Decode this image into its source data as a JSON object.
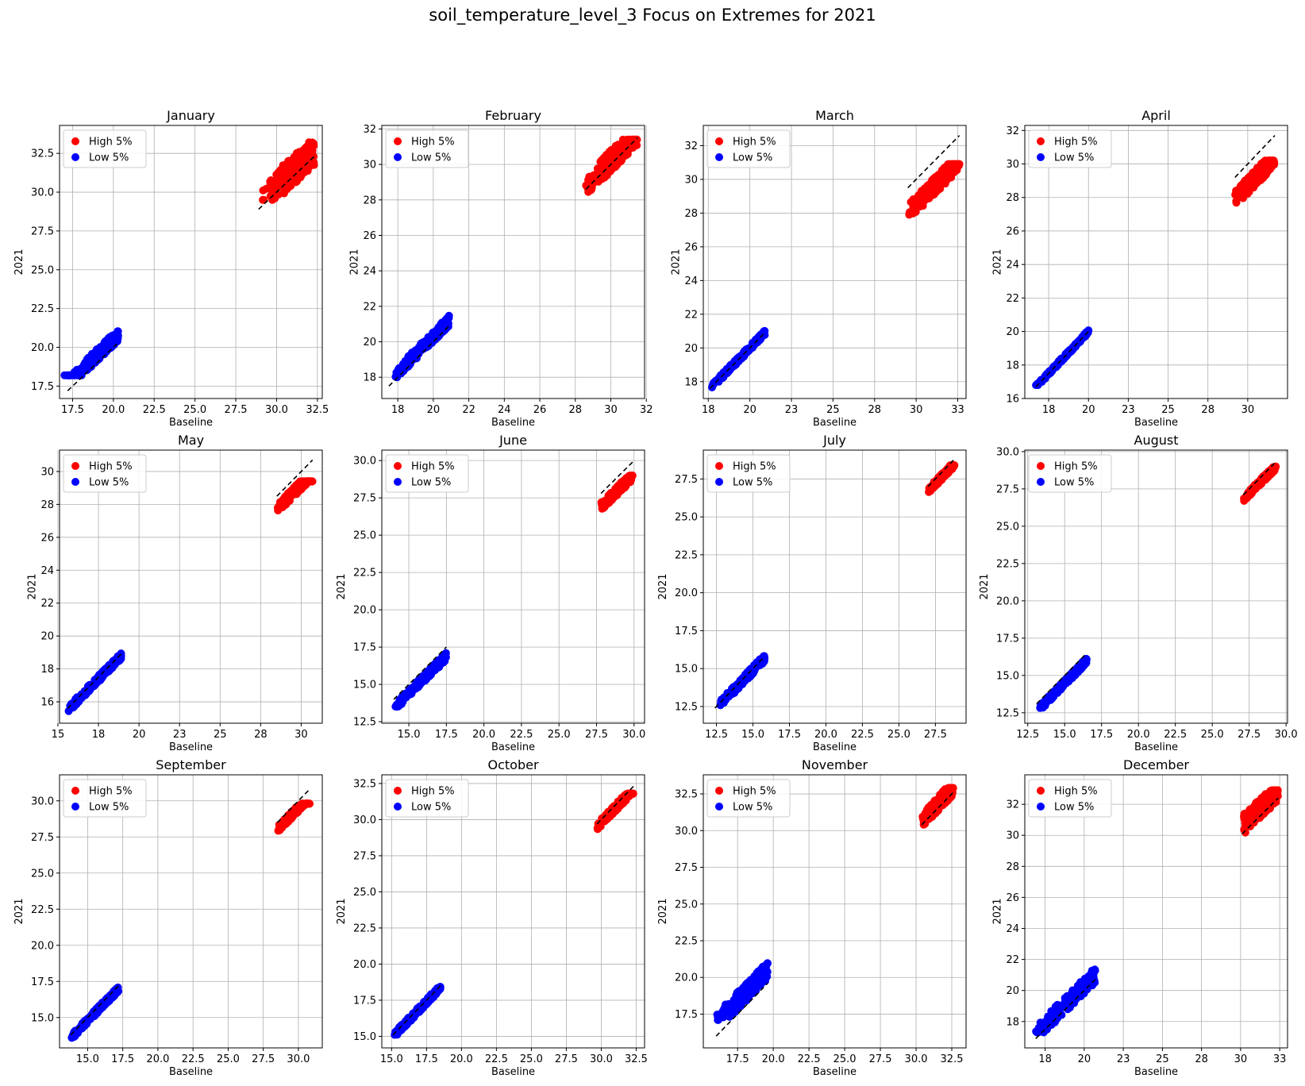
{
  "figure_title": "soil_temperature_level_3 Focus on Extremes for 2021",
  "colors": {
    "high": "#ff0000",
    "low": "#0000ff",
    "identity": "#000000",
    "grid": "#b0b0b0"
  },
  "chart_data": [
    {
      "type": "scatter",
      "title": "January",
      "xlabel": "Baseline",
      "ylabel": "2021",
      "xlim": [
        16.7,
        32.8
      ],
      "ylim": [
        16.7,
        34.3
      ],
      "xticks": [
        17.5,
        20.0,
        22.5,
        25.0,
        27.5,
        30.0,
        32.5
      ],
      "yticks": [
        17.5,
        20.0,
        22.5,
        25.0,
        27.5,
        30.0,
        32.5
      ],
      "decimals": 1,
      "legend": [
        "High 5%",
        "Low 5%"
      ],
      "series": [
        {
          "name": "High 5%",
          "x_range": [
            29.0,
            32.3
          ],
          "y_range": [
            29.5,
            33.6
          ],
          "offset": 0.4,
          "spread": 1.9
        },
        {
          "name": "Low 5%",
          "x_range": [
            17.0,
            20.3
          ],
          "y_range": [
            18.2,
            22.2
          ],
          "offset": 0.5,
          "spread": 0.8
        }
      ],
      "diagonal_segments": [
        [
          17.2,
          20.3
        ],
        [
          28.9,
          32.4
        ]
      ]
    },
    {
      "type": "scatter",
      "title": "February",
      "xlabel": "Baseline",
      "ylabel": "2021",
      "xlim": [
        17.1,
        31.9
      ],
      "ylim": [
        16.8,
        32.2
      ],
      "xticks": [
        18,
        20,
        22,
        24,
        26,
        28,
        30,
        32
      ],
      "yticks": [
        18,
        20,
        22,
        24,
        26,
        28,
        30,
        32
      ],
      "decimals": 0,
      "legend": [
        "High 5%",
        "Low 5%"
      ],
      "series": [
        {
          "name": "High 5%",
          "x_range": [
            28.6,
            31.5
          ],
          "y_range": [
            28.2,
            31.4
          ],
          "offset": 0.2,
          "spread": 1.2
        },
        {
          "name": "Low 5%",
          "x_range": [
            17.6,
            20.9
          ],
          "y_range": [
            17.8,
            22.4
          ],
          "offset": 0.3,
          "spread": 0.6
        }
      ],
      "diagonal_segments": [
        [
          17.5,
          20.9
        ],
        [
          28.6,
          31.5
        ]
      ]
    },
    {
      "type": "scatter",
      "title": "March",
      "xlabel": "Baseline",
      "ylabel": "2021",
      "xlim": [
        17.2,
        33.0
      ],
      "ylim": [
        17.0,
        33.2
      ],
      "xticks": [
        17.5,
        20.0,
        22.5,
        25.0,
        27.5,
        30.0,
        32.5
      ],
      "yticks": [
        18,
        20,
        22,
        24,
        26,
        28,
        30,
        32
      ],
      "decimals": 0,
      "legend": [
        "High 5%",
        "Low 5%"
      ],
      "series": [
        {
          "name": "High 5%",
          "x_range": [
            29.5,
            32.6
          ],
          "y_range": [
            27.9,
            30.9
          ],
          "offset": -1.5,
          "spread": 1.0
        },
        {
          "name": "Low 5%",
          "x_range": [
            17.6,
            20.9
          ],
          "y_range": [
            17.6,
            21.1
          ],
          "offset": 0.0,
          "spread": 0.3
        }
      ],
      "diagonal_segments": [
        [
          17.6,
          20.9
        ],
        [
          29.5,
          32.6
        ]
      ]
    },
    {
      "type": "scatter",
      "title": "April",
      "xlabel": "Baseline",
      "ylabel": "2021",
      "xlim": [
        16.0,
        32.5
      ],
      "ylim": [
        16.0,
        32.3
      ],
      "xticks": [
        17.5,
        20.0,
        22.5,
        25.0,
        27.5,
        30.0
      ],
      "yticks": [
        16,
        18,
        20,
        22,
        24,
        26,
        28,
        30,
        32
      ],
      "decimals": 0,
      "legend": [
        "High 5%",
        "Low 5%"
      ],
      "series": [
        {
          "name": "High 5%",
          "x_range": [
            29.2,
            31.7
          ],
          "y_range": [
            27.3,
            30.2
          ],
          "offset": -1.3,
          "spread": 1.0
        },
        {
          "name": "Low 5%",
          "x_range": [
            16.7,
            20.0
          ],
          "y_range": [
            16.8,
            20.3
          ],
          "offset": 0.0,
          "spread": 0.2
        }
      ],
      "diagonal_segments": [
        [
          16.7,
          20.0
        ],
        [
          29.2,
          31.7
        ]
      ]
    },
    {
      "type": "scatter",
      "title": "May",
      "xlabel": "Baseline",
      "ylabel": "2021",
      "xlim": [
        15.1,
        31.3
      ],
      "ylim": [
        14.7,
        31.3
      ],
      "xticks": [
        15.0,
        17.5,
        20.0,
        22.5,
        25.0,
        27.5,
        30.0
      ],
      "yticks": [
        16,
        18,
        20,
        22,
        24,
        26,
        28,
        30
      ],
      "decimals": 0,
      "legend": [
        "High 5%",
        "Low 5%"
      ],
      "series": [
        {
          "name": "High 5%",
          "x_range": [
            28.5,
            30.7
          ],
          "y_range": [
            27.2,
            29.4
          ],
          "offset": -0.8,
          "spread": 0.6
        },
        {
          "name": "Low 5%",
          "x_range": [
            15.6,
            18.9
          ],
          "y_range": [
            15.3,
            19.5
          ],
          "offset": -0.1,
          "spread": 0.4
        }
      ],
      "diagonal_segments": [
        [
          15.6,
          18.9
        ],
        [
          28.5,
          30.7
        ]
      ]
    },
    {
      "type": "scatter",
      "title": "June",
      "xlabel": "Baseline",
      "ylabel": "2021",
      "xlim": [
        13.2,
        30.7
      ],
      "ylim": [
        12.4,
        30.7
      ],
      "xticks": [
        15.0,
        17.5,
        20.0,
        22.5,
        25.0,
        27.5,
        30.0
      ],
      "yticks": [
        12.5,
        15.0,
        17.5,
        20.0,
        22.5,
        25.0,
        27.5,
        30.0
      ],
      "decimals": 1,
      "legend": [
        "High 5%",
        "Low 5%"
      ],
      "series": [
        {
          "name": "High 5%",
          "x_range": [
            27.8,
            29.9
          ],
          "y_range": [
            26.3,
            29.0
          ],
          "offset": -0.9,
          "spread": 0.6
        },
        {
          "name": "Low 5%",
          "x_range": [
            14.0,
            17.5
          ],
          "y_range": [
            13.2,
            17.4
          ],
          "offset": -0.6,
          "spread": 0.5
        }
      ],
      "diagonal_segments": [
        [
          14.0,
          17.5
        ],
        [
          27.8,
          29.9
        ]
      ]
    },
    {
      "type": "scatter",
      "title": "July",
      "xlabel": "Baseline",
      "ylabel": "2021",
      "xlim": [
        11.6,
        29.6
      ],
      "ylim": [
        11.4,
        29.4
      ],
      "xticks": [
        12.5,
        15.0,
        17.5,
        20.0,
        22.5,
        25.0,
        27.5
      ],
      "yticks": [
        12.5,
        15.0,
        17.5,
        20.0,
        22.5,
        25.0,
        27.5
      ],
      "decimals": 1,
      "legend": [
        "High 5%",
        "Low 5%"
      ],
      "series": [
        {
          "name": "High 5%",
          "x_range": [
            27.0,
            28.8
          ],
          "y_range": [
            26.2,
            28.4
          ],
          "offset": -0.3,
          "spread": 0.4
        },
        {
          "name": "Low 5%",
          "x_range": [
            12.4,
            15.8
          ],
          "y_range": [
            12.2,
            16.6
          ],
          "offset": -0.1,
          "spread": 0.5
        }
      ],
      "diagonal_segments": [
        [
          12.4,
          15.8
        ],
        [
          27.0,
          28.8
        ]
      ]
    },
    {
      "type": "scatter",
      "title": "August",
      "xlabel": "Baseline",
      "ylabel": "2021",
      "xlim": [
        12.3,
        30.1
      ],
      "ylim": [
        11.8,
        30.1
      ],
      "xticks": [
        12.5,
        15.0,
        17.5,
        20.0,
        22.5,
        25.0,
        27.5,
        30.0
      ],
      "yticks": [
        12.5,
        15.0,
        17.5,
        20.0,
        22.5,
        25.0,
        27.5,
        30.0
      ],
      "decimals": 1,
      "legend": [
        "High 5%",
        "Low 5%"
      ],
      "series": [
        {
          "name": "High 5%",
          "x_range": [
            27.1,
            29.3
          ],
          "y_range": [
            26.7,
            29.0
          ],
          "offset": -0.3,
          "spread": 0.4
        },
        {
          "name": "Low 5%",
          "x_range": [
            13.1,
            16.5
          ],
          "y_range": [
            12.5,
            16.5
          ],
          "offset": -0.5,
          "spread": 0.4
        }
      ],
      "diagonal_segments": [
        [
          13.1,
          16.5
        ],
        [
          27.1,
          29.3
        ]
      ]
    },
    {
      "type": "scatter",
      "title": "September",
      "xlabel": "Baseline",
      "ylabel": "2021",
      "xlim": [
        13.0,
        31.7
      ],
      "ylim": [
        12.9,
        31.8
      ],
      "xticks": [
        15.0,
        17.5,
        20.0,
        22.5,
        25.0,
        27.5,
        30.0
      ],
      "yticks": [
        15.0,
        17.5,
        20.0,
        22.5,
        25.0,
        27.5,
        30.0
      ],
      "decimals": 1,
      "legend": [
        "High 5%",
        "Low 5%"
      ],
      "series": [
        {
          "name": "High 5%",
          "x_range": [
            28.5,
            30.8
          ],
          "y_range": [
            27.6,
            29.8
          ],
          "offset": -0.5,
          "spread": 0.5
        },
        {
          "name": "Low 5%",
          "x_range": [
            13.8,
            17.2
          ],
          "y_range": [
            13.6,
            17.2
          ],
          "offset": -0.2,
          "spread": 0.4
        }
      ],
      "diagonal_segments": [
        [
          13.8,
          17.2
        ],
        [
          28.5,
          30.8
        ]
      ]
    },
    {
      "type": "scatter",
      "title": "October",
      "xlabel": "Baseline",
      "ylabel": "2021",
      "xlim": [
        14.3,
        33.1
      ],
      "ylim": [
        14.2,
        33.1
      ],
      "xticks": [
        15.0,
        17.5,
        20.0,
        22.5,
        25.0,
        27.5,
        30.0,
        32.5
      ],
      "yticks": [
        15.0,
        17.5,
        20.0,
        22.5,
        25.0,
        27.5,
        30.0,
        32.5
      ],
      "decimals": 1,
      "legend": [
        "High 5%",
        "Low 5%"
      ],
      "series": [
        {
          "name": "High 5%",
          "x_range": [
            29.7,
            32.3
          ],
          "y_range": [
            28.7,
            31.8
          ],
          "offset": -0.2,
          "spread": 0.5
        },
        {
          "name": "Low 5%",
          "x_range": [
            15.1,
            18.5
          ],
          "y_range": [
            15.1,
            18.7
          ],
          "offset": -0.1,
          "spread": 0.4
        }
      ],
      "diagonal_segments": [
        [
          15.1,
          18.5
        ],
        [
          29.7,
          32.3
        ]
      ]
    },
    {
      "type": "scatter",
      "title": "November",
      "xlabel": "Baseline",
      "ylabel": "2021",
      "xlim": [
        15.1,
        33.5
      ],
      "ylim": [
        15.2,
        33.8
      ],
      "xticks": [
        17.5,
        20.0,
        22.5,
        25.0,
        27.5,
        30.0,
        32.5
      ],
      "yticks": [
        17.5,
        20.0,
        22.5,
        25.0,
        27.5,
        30.0,
        32.5
      ],
      "decimals": 1,
      "legend": [
        "High 5%",
        "Low 5%"
      ],
      "series": [
        {
          "name": "High 5%",
          "x_range": [
            30.4,
            32.6
          ],
          "y_range": [
            30.1,
            32.9
          ],
          "offset": 0.3,
          "spread": 1.0
        },
        {
          "name": "Low 5%",
          "x_range": [
            16.0,
            19.6
          ],
          "y_range": [
            17.1,
            21.8
          ],
          "offset": 0.9,
          "spread": 1.2
        }
      ],
      "diagonal_segments": [
        [
          16.0,
          19.6
        ],
        [
          30.4,
          32.6
        ]
      ]
    },
    {
      "type": "scatter",
      "title": "December",
      "xlabel": "Baseline",
      "ylabel": "2021",
      "xlim": [
        16.2,
        33.0
      ],
      "ylim": [
        16.3,
        33.9
      ],
      "xticks": [
        17.5,
        20.0,
        22.5,
        25.0,
        27.5,
        30.0,
        32.5
      ],
      "yticks": [
        18,
        20,
        22,
        24,
        26,
        28,
        30,
        32
      ],
      "decimals": 0,
      "legend": [
        "High 5%",
        "Low 5%"
      ],
      "series": [
        {
          "name": "High 5%",
          "x_range": [
            30.1,
            32.4
          ],
          "y_range": [
            29.9,
            32.9
          ],
          "offset": 0.5,
          "spread": 1.3
        },
        {
          "name": "Low 5%",
          "x_range": [
            16.9,
            20.7
          ],
          "y_range": [
            17.3,
            22.2
          ],
          "offset": 0.3,
          "spread": 1.0
        }
      ],
      "diagonal_segments": [
        [
          16.9,
          20.7
        ],
        [
          30.1,
          32.4
        ]
      ]
    }
  ]
}
